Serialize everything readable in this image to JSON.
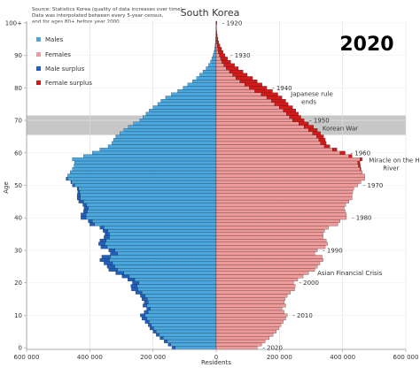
{
  "chart_data": {
    "type": "bar",
    "title": "South Korea",
    "year_label": "2020",
    "source_note": [
      "Source: Statistics Korea (quality of data increases over time).",
      "Data was interpolated between every 5-year census,",
      "and for ages 80+ before year 2000."
    ],
    "xlabel": "Residents",
    "ylabel": "Age",
    "xlim": [
      -600000,
      600000
    ],
    "ylim": [
      0,
      100
    ],
    "x_ticks": [
      -600000,
      -400000,
      -200000,
      0,
      200000,
      400000,
      600000
    ],
    "x_tick_labels": [
      "600 000",
      "400 000",
      "200 000",
      "0",
      "200 000",
      "400 000",
      "600 000"
    ],
    "y_ticks": [
      0,
      10,
      20,
      30,
      40,
      50,
      60,
      70,
      80,
      90,
      100
    ],
    "y_tick_labels": [
      "0",
      "10",
      "20",
      "30",
      "40",
      "50",
      "60",
      "70",
      "80",
      "90",
      "100+"
    ],
    "legend": [
      {
        "label": "Males",
        "color": "#4aa8e0"
      },
      {
        "label": "Females",
        "color": "#f19a9a"
      },
      {
        "label": "Male surplus",
        "color": "#1f5fbf"
      },
      {
        "label": "Female surplus",
        "color": "#d61818"
      }
    ],
    "colors": {
      "male": "#4aa8e0",
      "female": "#f19a9a",
      "male_surplus": "#1f5fbf",
      "female_surplus": "#d61818",
      "overlay": "#000000"
    },
    "birth_year_annotations": [
      {
        "age": 0,
        "text": "2020"
      },
      {
        "age": 10,
        "text": "2010"
      },
      {
        "age": 20,
        "text": "2000"
      },
      {
        "age": 30,
        "text": "1990"
      },
      {
        "age": 40,
        "text": "1980"
      },
      {
        "age": 50,
        "text": "1970"
      },
      {
        "age": 60,
        "text": "1960"
      },
      {
        "age": 70,
        "text": "1950"
      },
      {
        "age": 80,
        "text": "1940"
      },
      {
        "age": 90,
        "text": "1930"
      },
      {
        "age": 100,
        "text": "1920"
      }
    ],
    "event_annotations": [
      {
        "age": 77,
        "lines": [
          "Japanese rule",
          "ends"
        ]
      },
      {
        "age": 67.5,
        "lines": [
          "Korean War"
        ]
      },
      {
        "age": 56.5,
        "lines": [
          "Miracle on the Han",
          "River"
        ]
      },
      {
        "age": 23,
        "lines": [
          "Asian Financial Crisis"
        ]
      }
    ],
    "shaded_age_band": [
      66,
      71
    ],
    "ages": [
      0,
      1,
      2,
      3,
      4,
      5,
      6,
      7,
      8,
      9,
      10,
      11,
      12,
      13,
      14,
      15,
      16,
      17,
      18,
      19,
      20,
      21,
      22,
      23,
      24,
      25,
      26,
      27,
      28,
      29,
      30,
      31,
      32,
      33,
      34,
      35,
      36,
      37,
      38,
      39,
      40,
      41,
      42,
      43,
      44,
      45,
      46,
      47,
      48,
      49,
      50,
      51,
      52,
      53,
      54,
      55,
      56,
      57,
      58,
      59,
      60,
      61,
      62,
      63,
      64,
      65,
      66,
      67,
      68,
      69,
      70,
      71,
      72,
      73,
      74,
      75,
      76,
      77,
      78,
      79,
      80,
      81,
      82,
      83,
      84,
      85,
      86,
      87,
      88,
      89,
      90,
      91,
      92,
      93,
      94,
      95,
      96,
      97,
      98,
      99,
      100
    ],
    "series": [
      {
        "name": "Males",
        "values": [
          140000,
          152000,
          165000,
          178000,
          190000,
          200000,
          210000,
          215000,
          225000,
          235000,
          240000,
          228000,
          220000,
          232000,
          228000,
          235000,
          240000,
          255000,
          268000,
          270000,
          265000,
          280000,
          298000,
          318000,
          340000,
          345000,
          355000,
          368000,
          362000,
          335000,
          340000,
          365000,
          372000,
          368000,
          355000,
          352000,
          358000,
          368000,
          400000,
          405000,
          428000,
          428000,
          420000,
          418000,
          422000,
          435000,
          440000,
          440000,
          438000,
          440000,
          455000,
          460000,
          475000,
          470000,
          462000,
          455000,
          450000,
          448000,
          455000,
          420000,
          392000,
          368000,
          342000,
          330000,
          325000,
          318000,
          305000,
          292000,
          278000,
          262000,
          242000,
          232000,
          222000,
          212000,
          200000,
          185000,
          175000,
          160000,
          142000,
          122000,
          105000,
          90000,
          75000,
          62000,
          52000,
          42000,
          32000,
          24000,
          18000,
          14000,
          10000,
          7000,
          5000,
          3500,
          2500,
          1800,
          1200,
          800,
          500,
          300,
          800
        ]
      },
      {
        "name": "Females",
        "values": [
          130000,
          144000,
          155000,
          168000,
          180000,
          190000,
          198000,
          205000,
          212000,
          220000,
          225000,
          215000,
          208000,
          220000,
          215000,
          218000,
          225000,
          235000,
          248000,
          250000,
          245000,
          258000,
          275000,
          292000,
          312000,
          320000,
          328000,
          338000,
          335000,
          312000,
          320000,
          345000,
          352000,
          348000,
          338000,
          338000,
          343000,
          355000,
          385000,
          392000,
          412000,
          412000,
          408000,
          405000,
          410000,
          420000,
          430000,
          430000,
          432000,
          435000,
          448000,
          458000,
          470000,
          470000,
          462000,
          458000,
          456000,
          455000,
          462000,
          430000,
          408000,
          382000,
          360000,
          348000,
          345000,
          340000,
          330000,
          320000,
          308000,
          292000,
          278000,
          268000,
          260000,
          252000,
          242000,
          228000,
          220000,
          208000,
          195000,
          178000,
          160000,
          145000,
          130000,
          115000,
          98000,
          85000,
          70000,
          58000,
          46000,
          36000,
          28000,
          22000,
          17000,
          12000,
          8000,
          5500,
          3500,
          2000,
          1200,
          700,
          2000
        ]
      }
    ]
  }
}
